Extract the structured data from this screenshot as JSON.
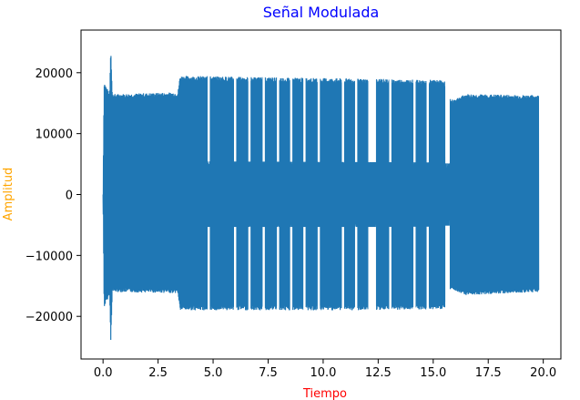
{
  "chart_data": {
    "type": "line",
    "title": "Señal Modulada",
    "xlabel": "Tiempo",
    "ylabel": "Amplitud",
    "title_color": "#0000ff",
    "xlabel_color": "#ff0000",
    "ylabel_color": "#ffa500",
    "line_color": "#1f77b4",
    "xlim": [
      -1.0,
      20.8
    ],
    "ylim": [
      -27000,
      27000
    ],
    "x_ticks": [
      0.0,
      2.5,
      5.0,
      7.5,
      10.0,
      12.5,
      15.0,
      17.5,
      20.0
    ],
    "x_tick_labels": [
      "0.0",
      "2.5",
      "5.0",
      "7.5",
      "10.0",
      "12.5",
      "15.0",
      "17.5",
      "20.0"
    ],
    "y_ticks": [
      -20000,
      -10000,
      0,
      10000,
      20000
    ],
    "y_tick_labels": [
      "−20000",
      "−10000",
      "0",
      "10000",
      "20000"
    ],
    "grid": false,
    "series": [
      {
        "name": "",
        "x_range": [
          0.0,
          19.8
        ],
        "envelope": [
          {
            "x": 0.0,
            "upper": 0,
            "lower": 0
          },
          {
            "x": 0.05,
            "upper": 18500,
            "lower": -18500
          },
          {
            "x": 0.3,
            "upper": 16500,
            "lower": -16500
          },
          {
            "x": 0.35,
            "upper": 24500,
            "lower": -24200
          },
          {
            "x": 0.42,
            "upper": 16500,
            "lower": -16000
          },
          {
            "x": 3.4,
            "upper": 16800,
            "lower": -16200
          },
          {
            "x": 3.5,
            "upper": 19500,
            "lower": -19000
          },
          {
            "x": 12.0,
            "upper": 19000,
            "lower": -19000
          },
          {
            "x": 15.5,
            "upper": 18800,
            "lower": -18800
          },
          {
            "x": 15.8,
            "upper": 15500,
            "lower": -15500
          },
          {
            "x": 16.5,
            "upper": 16500,
            "lower": -16500
          },
          {
            "x": 19.8,
            "upper": 16300,
            "lower": -16000
          }
        ],
        "gaps": [
          {
            "x_start": 4.75,
            "x_end": 4.85
          },
          {
            "x_start": 5.95,
            "x_end": 6.05
          },
          {
            "x_start": 6.6,
            "x_end": 6.7
          },
          {
            "x_start": 7.25,
            "x_end": 7.35
          },
          {
            "x_start": 7.9,
            "x_end": 8.0
          },
          {
            "x_start": 8.5,
            "x_end": 8.6
          },
          {
            "x_start": 9.1,
            "x_end": 9.2
          },
          {
            "x_start": 9.75,
            "x_end": 9.85
          },
          {
            "x_start": 10.85,
            "x_end": 10.95
          },
          {
            "x_start": 11.45,
            "x_end": 11.55
          },
          {
            "x_start": 12.05,
            "x_end": 12.4
          },
          {
            "x_start": 13.0,
            "x_end": 13.1
          },
          {
            "x_start": 14.1,
            "x_end": 14.2
          },
          {
            "x_start": 14.7,
            "x_end": 14.8
          },
          {
            "x_start": 15.55,
            "x_end": 15.75
          }
        ]
      }
    ]
  }
}
